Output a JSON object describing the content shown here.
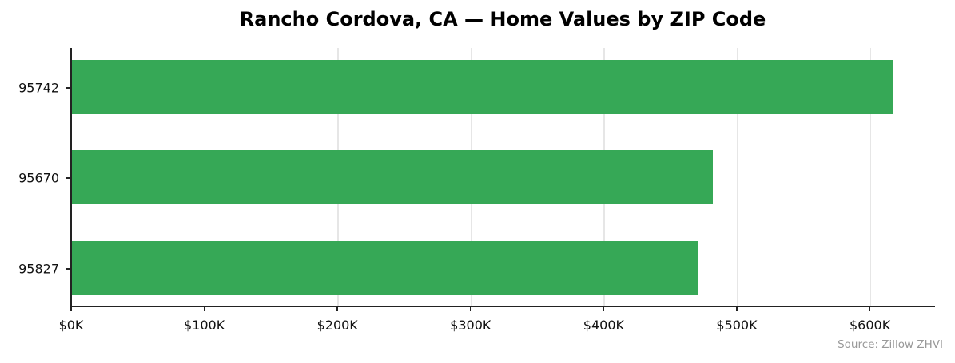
{
  "chart_data": {
    "type": "bar",
    "orientation": "horizontal",
    "title": "Rancho Cordova, CA — Home Values by ZIP Code",
    "categories": [
      "95742",
      "95670",
      "95827"
    ],
    "values": [
      617700,
      482000,
      470600
    ],
    "xlabel": "",
    "ylabel": "",
    "xlim": [
      0,
      649000
    ],
    "x_ticks": [
      0,
      100000,
      200000,
      300000,
      400000,
      500000,
      600000
    ],
    "x_tick_labels": [
      "$0K",
      "$100K",
      "$200K",
      "$300K",
      "$400K",
      "$500K",
      "$600K"
    ],
    "grid": "x",
    "bar_color": "#36a856",
    "source": "Source: Zillow ZHVI"
  },
  "title": "Rancho Cordova, CA — Home Values by ZIP Code",
  "source": "Source: Zillow ZHVI",
  "y_labels": [
    "95742",
    "95670",
    "95827"
  ],
  "x_labels": [
    "$0K",
    "$100K",
    "$200K",
    "$300K",
    "$400K",
    "$500K",
    "$600K"
  ]
}
